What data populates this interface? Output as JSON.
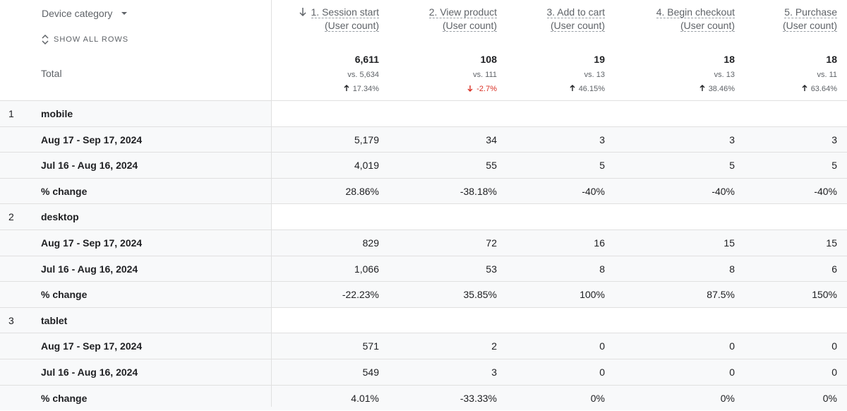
{
  "header": {
    "dimension": "Device category",
    "show_all": "SHOW ALL ROWS",
    "sort_column": 0,
    "columns": [
      {
        "step": "1. Session start",
        "metric": "(User count)"
      },
      {
        "step": "2. View product",
        "metric": "(User count)"
      },
      {
        "step": "3. Add to cart",
        "metric": "(User count)"
      },
      {
        "step": "4. Begin checkout",
        "metric": "(User count)"
      },
      {
        "step": "5. Purchase",
        "metric": "(User count)"
      }
    ]
  },
  "total": {
    "label": "Total",
    "values": [
      "6,611",
      "108",
      "19",
      "18",
      "18"
    ],
    "comparisons": [
      "vs. 5,634",
      "vs. 111",
      "vs. 13",
      "vs. 13",
      "vs. 11"
    ],
    "changes": [
      {
        "text": "17.34%",
        "trend": "up"
      },
      {
        "text": "-2.7%",
        "trend": "down"
      },
      {
        "text": "46.15%",
        "trend": "up"
      },
      {
        "text": "38.46%",
        "trend": "up"
      },
      {
        "text": "63.64%",
        "trend": "up"
      }
    ]
  },
  "groups": [
    {
      "index": "1",
      "name": "mobile",
      "rows": [
        {
          "label": "Aug 17 - Sep 17, 2024",
          "values": [
            "5,179",
            "34",
            "3",
            "3",
            "3"
          ]
        },
        {
          "label": "Jul 16 - Aug 16, 2024",
          "values": [
            "4,019",
            "55",
            "5",
            "5",
            "5"
          ]
        },
        {
          "label": "% change",
          "values": [
            "28.86%",
            "-38.18%",
            "-40%",
            "-40%",
            "-40%"
          ]
        }
      ]
    },
    {
      "index": "2",
      "name": "desktop",
      "rows": [
        {
          "label": "Aug 17 - Sep 17, 2024",
          "values": [
            "829",
            "72",
            "16",
            "15",
            "15"
          ]
        },
        {
          "label": "Jul 16 - Aug 16, 2024",
          "values": [
            "1,066",
            "53",
            "8",
            "8",
            "6"
          ]
        },
        {
          "label": "% change",
          "values": [
            "-22.23%",
            "35.85%",
            "100%",
            "87.5%",
            "150%"
          ]
        }
      ]
    },
    {
      "index": "3",
      "name": "tablet",
      "rows": [
        {
          "label": "Aug 17 - Sep 17, 2024",
          "values": [
            "571",
            "2",
            "0",
            "0",
            "0"
          ]
        },
        {
          "label": "Jul 16 - Aug 16, 2024",
          "values": [
            "549",
            "3",
            "0",
            "0",
            "0"
          ]
        },
        {
          "label": "% change",
          "values": [
            "4.01%",
            "-33.33%",
            "0%",
            "0%",
            "0%"
          ]
        }
      ]
    }
  ]
}
